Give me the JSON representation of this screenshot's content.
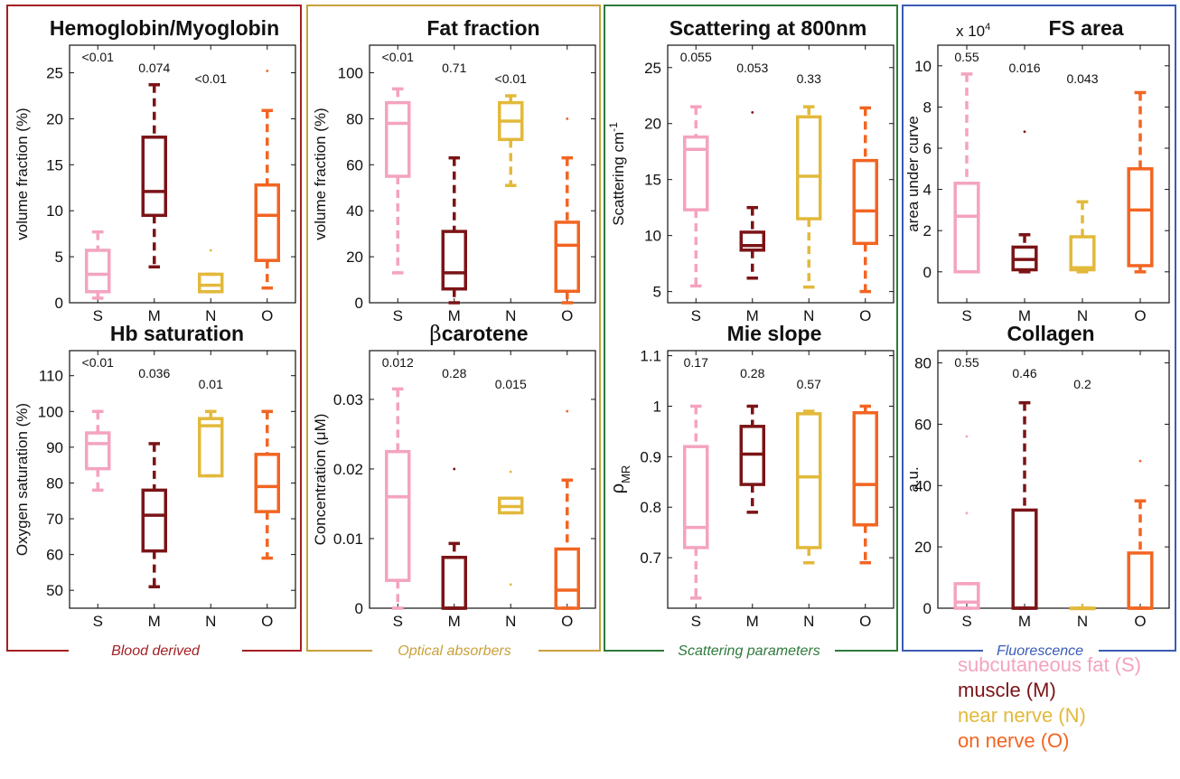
{
  "colors": {
    "S": "#f4a3c0",
    "M": "#7b1417",
    "N": "#e2b93b",
    "O": "#f26522",
    "blood": "#a31f24",
    "optical": "#c9a13a",
    "scattering": "#2f7a3c",
    "fluorescence": "#3a5bb5"
  },
  "groups": [
    {
      "id": "blood",
      "label": "Blood derived"
    },
    {
      "id": "optical",
      "label": "Optical absorbers"
    },
    {
      "id": "scattering",
      "label": "Scattering parameters"
    },
    {
      "id": "fluorescence",
      "label": "Fluorescence"
    }
  ],
  "legend": [
    {
      "key": "S",
      "label": "subcutaneous fat (S)"
    },
    {
      "key": "M",
      "label": "muscle (M)"
    },
    {
      "key": "N",
      "label": "near nerve (N)"
    },
    {
      "key": "O",
      "label": "on nerve (O)"
    }
  ],
  "chart_data": [
    {
      "type": "box",
      "title": "Hemoglobin/Myoglobin",
      "ylabel": "volume fraction  (%)",
      "ylim": [
        0,
        28
      ],
      "yticks": [
        0,
        5,
        10,
        15,
        20,
        25
      ],
      "multiplier": "",
      "categories": [
        "S",
        "M",
        "N",
        "O"
      ],
      "pvalues": [
        "<0.01",
        "0.074",
        "<0.01",
        ""
      ],
      "boxes": [
        {
          "key": "S",
          "min": 0.5,
          "q1": 1.2,
          "median": 3.1,
          "q3": 5.7,
          "max": 7.7,
          "outliers": []
        },
        {
          "key": "M",
          "min": 3.9,
          "q1": 9.5,
          "median": 12.1,
          "q3": 18.0,
          "max": 23.7,
          "outliers": []
        },
        {
          "key": "N",
          "min": 1.2,
          "q1": 1.2,
          "median": 1.9,
          "q3": 3.1,
          "max": 3.1,
          "outliers": [
            5.7
          ]
        },
        {
          "key": "O",
          "min": 1.6,
          "q1": 4.6,
          "median": 9.5,
          "q3": 12.8,
          "max": 20.9,
          "outliers": [
            25.2
          ]
        }
      ]
    },
    {
      "type": "box",
      "title": "Fat fraction",
      "ylabel": "volume fraction  (%)",
      "ylim": [
        0,
        112
      ],
      "yticks": [
        0,
        20,
        40,
        60,
        80,
        100
      ],
      "multiplier": "",
      "categories": [
        "S",
        "M",
        "N",
        "O"
      ],
      "pvalues": [
        "<0.01",
        "0.71",
        "<0.01",
        ""
      ],
      "boxes": [
        {
          "key": "S",
          "min": 13,
          "q1": 55,
          "median": 78,
          "q3": 87,
          "max": 93,
          "outliers": []
        },
        {
          "key": "M",
          "min": 0,
          "q1": 6,
          "median": 13,
          "q3": 31,
          "max": 63,
          "outliers": []
        },
        {
          "key": "N",
          "min": 51,
          "q1": 71,
          "median": 79,
          "q3": 87,
          "max": 90,
          "outliers": []
        },
        {
          "key": "O",
          "min": 0,
          "q1": 5,
          "median": 25,
          "q3": 35,
          "max": 63,
          "outliers": [
            80
          ]
        }
      ]
    },
    {
      "type": "box",
      "title": "Scattering at 800nm",
      "ylabel": "Scattering cm-1",
      "ylim": [
        4,
        27
      ],
      "yticks": [
        5,
        10,
        15,
        20,
        25
      ],
      "multiplier": "",
      "categories": [
        "S",
        "M",
        "N",
        "O"
      ],
      "pvalues": [
        "0.055",
        "0.053",
        "0.33",
        ""
      ],
      "boxes": [
        {
          "key": "S",
          "min": 5.5,
          "q1": 12.3,
          "median": 17.7,
          "q3": 18.8,
          "max": 21.5,
          "outliers": []
        },
        {
          "key": "M",
          "min": 6.2,
          "q1": 8.7,
          "median": 9.1,
          "q3": 10.3,
          "max": 12.5,
          "outliers": [
            21.0
          ]
        },
        {
          "key": "N",
          "min": 5.4,
          "q1": 11.5,
          "median": 15.3,
          "q3": 20.6,
          "max": 21.5,
          "outliers": []
        },
        {
          "key": "O",
          "min": 5.0,
          "q1": 9.3,
          "median": 12.2,
          "q3": 16.7,
          "max": 21.4,
          "outliers": []
        }
      ]
    },
    {
      "type": "box",
      "title": "FS area",
      "ylabel": "area under curve",
      "ylim": [
        -1.5,
        11
      ],
      "yticks": [
        0,
        2,
        4,
        6,
        8,
        10
      ],
      "multiplier": "x 10^4",
      "categories": [
        "S",
        "M",
        "N",
        "O"
      ],
      "pvalues": [
        "0.55",
        "0.016",
        "0.043",
        ""
      ],
      "boxes": [
        {
          "key": "S",
          "min": 0,
          "q1": 0,
          "median": 2.7,
          "q3": 4.3,
          "max": 9.6,
          "outliers": []
        },
        {
          "key": "M",
          "min": 0,
          "q1": 0.1,
          "median": 0.6,
          "q3": 1.2,
          "max": 1.8,
          "outliers": [
            6.8
          ]
        },
        {
          "key": "N",
          "min": 0,
          "q1": 0.1,
          "median": 0.2,
          "q3": 1.7,
          "max": 3.4,
          "outliers": []
        },
        {
          "key": "O",
          "min": 0,
          "q1": 0.3,
          "median": 3.0,
          "q3": 5.0,
          "max": 8.7,
          "outliers": []
        }
      ]
    },
    {
      "type": "box",
      "title": "Hb saturation",
      "ylabel": "Oxygen saturation (%)",
      "ylim": [
        45,
        117
      ],
      "yticks": [
        50,
        60,
        70,
        80,
        90,
        100,
        110
      ],
      "multiplier": "",
      "categories": [
        "S",
        "M",
        "N",
        "O"
      ],
      "pvalues": [
        "<0.01",
        "0.036",
        "0.01",
        ""
      ],
      "boxes": [
        {
          "key": "S",
          "min": 78,
          "q1": 84,
          "median": 91,
          "q3": 94,
          "max": 100,
          "outliers": []
        },
        {
          "key": "M",
          "min": 51,
          "q1": 61,
          "median": 71,
          "q3": 78,
          "max": 91,
          "outliers": []
        },
        {
          "key": "N",
          "min": 82,
          "q1": 82,
          "median": 96,
          "q3": 98,
          "max": 100,
          "outliers": []
        },
        {
          "key": "O",
          "min": 59,
          "q1": 72,
          "median": 79,
          "q3": 88,
          "max": 100,
          "outliers": []
        }
      ]
    },
    {
      "type": "box",
      "title": "carotene",
      "title_prefix": "β",
      "ylabel": "Concentration (μM)",
      "ylim": [
        0,
        0.037
      ],
      "yticks": [
        0,
        0.01,
        0.02,
        0.03
      ],
      "multiplier": "",
      "categories": [
        "S",
        "M",
        "N",
        "O"
      ],
      "pvalues": [
        "0.012",
        "0.28",
        "0.015",
        ""
      ],
      "boxes": [
        {
          "key": "S",
          "min": 0,
          "q1": 0.004,
          "median": 0.016,
          "q3": 0.0225,
          "max": 0.0315,
          "outliers": []
        },
        {
          "key": "M",
          "min": 0,
          "q1": 0,
          "median": 0,
          "q3": 0.0073,
          "max": 0.0093,
          "outliers": [
            0.02
          ]
        },
        {
          "key": "N",
          "min": 0.0137,
          "q1": 0.0137,
          "median": 0.0146,
          "q3": 0.0158,
          "max": 0.0158,
          "outliers": [
            0.0034,
            0.0196
          ]
        },
        {
          "key": "O",
          "min": 0,
          "q1": 0,
          "median": 0.0026,
          "q3": 0.0085,
          "max": 0.0184,
          "outliers": [
            0.0283
          ]
        }
      ]
    },
    {
      "type": "box",
      "title": "Mie slope",
      "ylabel": "ρMR",
      "ylim": [
        0.6,
        1.11
      ],
      "yticks": [
        0.7,
        0.8,
        0.9,
        1,
        1.1
      ],
      "multiplier": "",
      "categories": [
        "S",
        "M",
        "N",
        "O"
      ],
      "pvalues": [
        "0.17",
        "0.28",
        "0.57",
        ""
      ],
      "boxes": [
        {
          "key": "S",
          "min": 0.62,
          "q1": 0.72,
          "median": 0.76,
          "q3": 0.92,
          "max": 1.0,
          "outliers": []
        },
        {
          "key": "M",
          "min": 0.79,
          "q1": 0.845,
          "median": 0.905,
          "q3": 0.96,
          "max": 1.0,
          "outliers": []
        },
        {
          "key": "N",
          "min": 0.69,
          "q1": 0.72,
          "median": 0.86,
          "q3": 0.985,
          "max": 0.99,
          "outliers": []
        },
        {
          "key": "O",
          "min": 0.69,
          "q1": 0.765,
          "median": 0.845,
          "q3": 0.987,
          "max": 1.0,
          "outliers": []
        }
      ]
    },
    {
      "type": "box",
      "title": "Collagen",
      "ylabel": "a.u.",
      "ylim": [
        0,
        84
      ],
      "yticks": [
        0,
        20,
        40,
        60,
        80
      ],
      "multiplier": "",
      "categories": [
        "S",
        "M",
        "N",
        "O"
      ],
      "pvalues": [
        "0.55",
        "0.46",
        "0.2",
        ""
      ],
      "boxes": [
        {
          "key": "S",
          "min": 0,
          "q1": 0,
          "median": 2,
          "q3": 8,
          "max": 8,
          "outliers": [
            31,
            56
          ]
        },
        {
          "key": "M",
          "min": 0,
          "q1": 0,
          "median": 0,
          "q3": 32,
          "max": 67,
          "outliers": []
        },
        {
          "key": "N",
          "min": 0,
          "q1": 0,
          "median": 0,
          "q3": 0,
          "max": 0,
          "outliers": [
            1
          ]
        },
        {
          "key": "O",
          "min": 0,
          "q1": 0,
          "median": 0,
          "q3": 18,
          "max": 35,
          "outliers": [
            48
          ]
        }
      ]
    }
  ]
}
